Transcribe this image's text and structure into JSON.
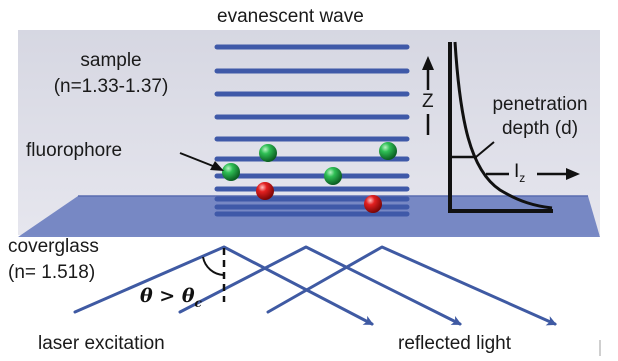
{
  "labels": {
    "title": "evanescent wave",
    "sample_line1": "sample",
    "sample_line2": "(n=1.33-1.37)",
    "fluorophore": "fluorophore",
    "coverglass_line1": "coverglass",
    "coverglass_line2": "(n= 1.518)",
    "laser": "laser excitation",
    "reflected": "reflected light",
    "z_axis": "Z",
    "penetration_line1": "penetration",
    "penetration_line2": "depth (d)",
    "intensity_symbol": "I",
    "intensity_sub": "z",
    "angle_theta": "θ",
    "angle_relation": " > θ",
    "angle_sub": "c"
  },
  "colors": {
    "sample_region": "#dcdce6",
    "coverglass": "#6e80c0",
    "wave_lines": "#3f59a8",
    "beams": "#3f5aa3",
    "green_fluorophore": "#1a9a3a",
    "red_fluorophore": "#d81818",
    "axes": "#111111"
  },
  "fluorophores": {
    "green_count": 4,
    "red_count": 2
  }
}
